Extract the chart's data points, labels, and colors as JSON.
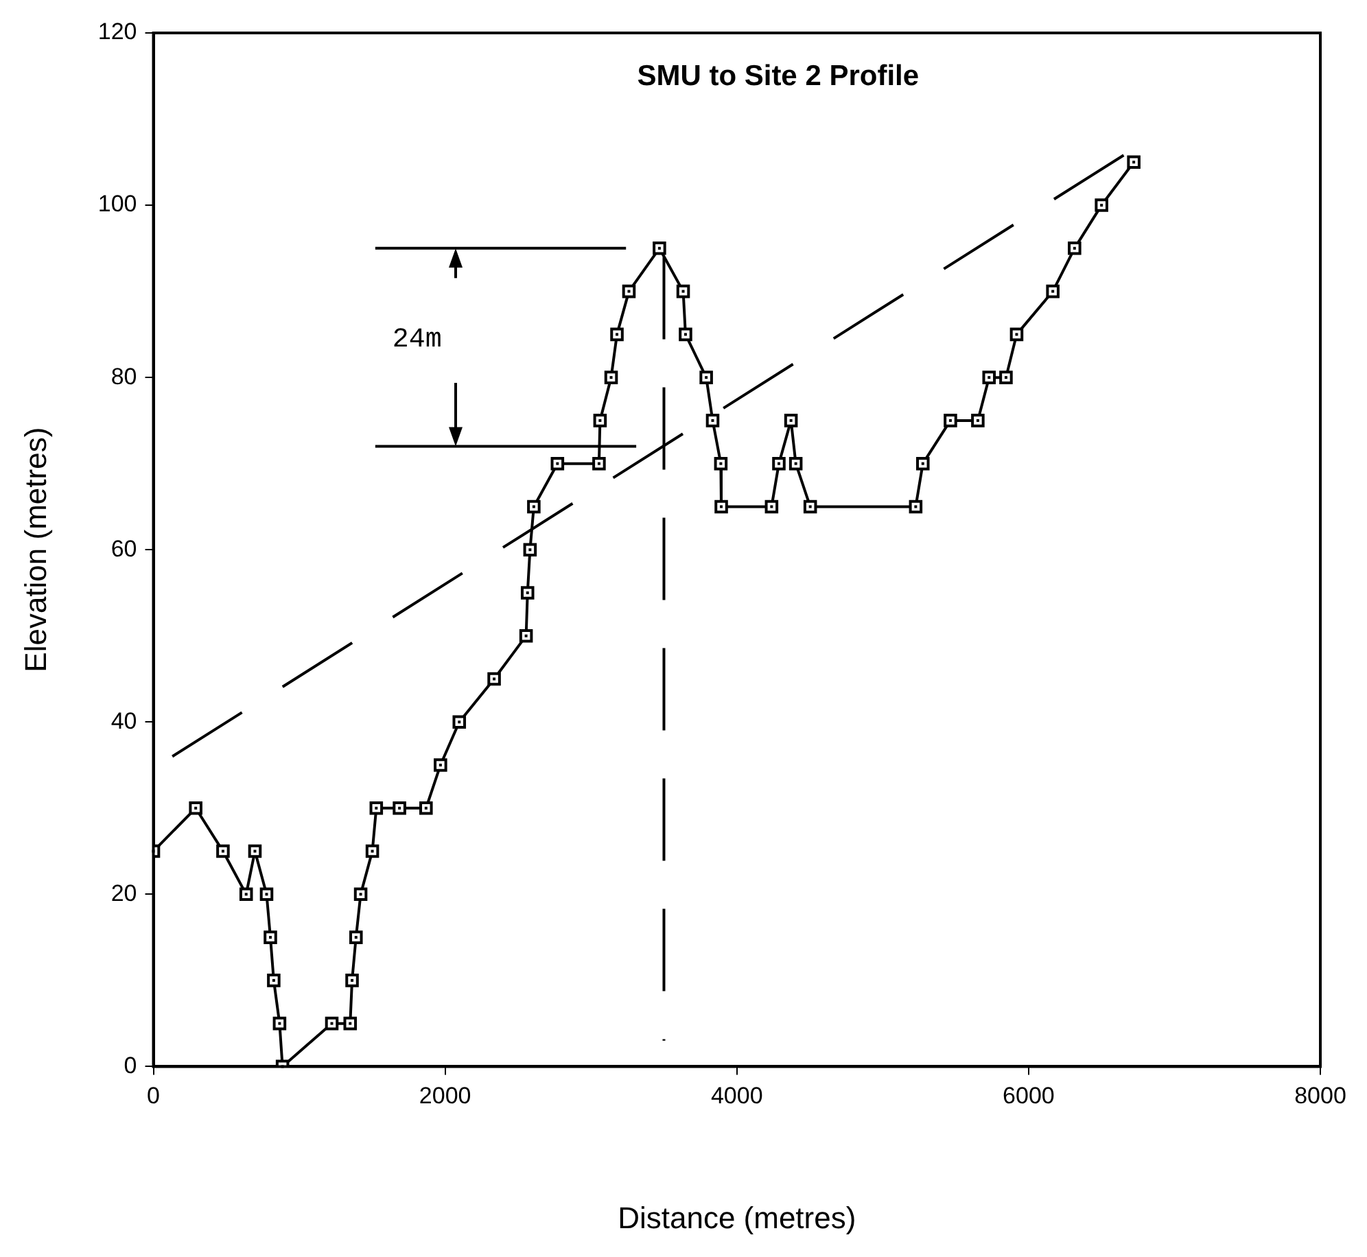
{
  "chart_data": {
    "type": "line",
    "title": "SMU to Site 2 Profile",
    "xlabel": "Distance (metres)",
    "ylabel": "Elevation (metres)",
    "xlim": [
      0,
      8000
    ],
    "xticks": [
      0,
      2000,
      4000,
      6000,
      8000
    ],
    "ylim": [
      0,
      120
    ],
    "yticks": [
      0,
      20,
      40,
      60,
      80,
      100,
      120
    ],
    "grid": false,
    "legend": false,
    "marker": "square",
    "line_style": "solid",
    "annotations": [
      "24m"
    ],
    "series": [
      {
        "color": "#000000",
        "x": [
          0,
          290,
          477,
          636,
          696,
          776,
          802,
          825,
          865,
          885,
          1223,
          1349,
          1362,
          1389,
          1421,
          1501,
          1528,
          1687,
          1869,
          1968,
          2097,
          2336,
          2555,
          2565,
          2582,
          2608,
          2770,
          3055,
          3062,
          3138,
          3178,
          3260,
          3469,
          3632,
          3648,
          3790,
          3834,
          3890,
          3893,
          4238,
          4288,
          4371,
          4404,
          4503,
          5226,
          5275,
          5464,
          5652,
          5729,
          5845,
          5918,
          6166,
          6315,
          6500,
          6721
        ],
        "values": [
          25,
          30,
          25,
          20,
          25,
          20,
          15,
          10,
          5,
          0,
          5,
          5,
          10,
          15,
          20,
          25,
          30,
          30,
          30,
          35,
          40,
          45,
          50,
          55,
          60,
          65,
          70,
          70,
          75,
          80,
          85,
          90,
          95,
          90,
          85,
          80,
          75,
          70,
          65,
          65,
          70,
          75,
          70,
          65,
          65,
          70,
          75,
          75,
          80,
          80,
          85,
          90,
          95,
          100,
          105
        ]
      },
      {
        "type": "line",
        "color": "#000000",
        "marker": "none",
        "line_style": "dashed",
        "x": [
          130,
          6670
        ],
        "values": [
          36,
          106
        ]
      },
      {
        "type": "line",
        "color": "#000000",
        "marker": "none",
        "line_style": "dashed",
        "x": [
          3500,
          3500
        ],
        "values": [
          94,
          3
        ]
      },
      {
        "type": "line",
        "color": "#000000",
        "marker": "none",
        "line_style": "solid",
        "x": [
          1521,
          3240
        ],
        "values": [
          95,
          95
        ]
      },
      {
        "type": "line",
        "color": "#000000",
        "marker": "none",
        "line_style": "solid",
        "x": [
          1521,
          3310
        ],
        "values": [
          72,
          72
        ]
      }
    ]
  }
}
